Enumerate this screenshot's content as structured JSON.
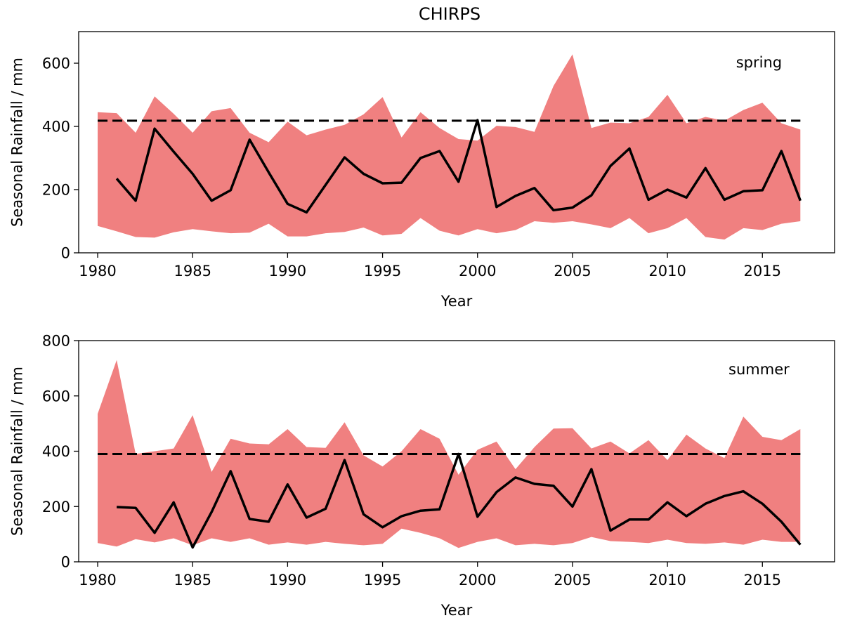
{
  "figure": {
    "title": "CHIRPS"
  },
  "chart_data": [
    {
      "type": "area",
      "annotation": "spring",
      "xlabel": "Year",
      "ylabel": "Seasonal Rainfall / mm",
      "xlim": [
        1979.0,
        2018.8
      ],
      "ylim": [
        0,
        700
      ],
      "xticks": [
        1980,
        1985,
        1990,
        1995,
        2000,
        2005,
        2010,
        2015
      ],
      "yticks": [
        0,
        200,
        400,
        600
      ],
      "grid": false,
      "colors": {
        "band": "#f08080",
        "line": "#000000",
        "threshold": "#000000"
      },
      "band": {
        "x": [
          1980,
          1981,
          1982,
          1983,
          1984,
          1985,
          1986,
          1987,
          1988,
          1989,
          1990,
          1991,
          1992,
          1993,
          1994,
          1995,
          1996,
          1997,
          1998,
          1999,
          2000,
          2001,
          2002,
          2003,
          2004,
          2005,
          2006,
          2007,
          2008,
          2009,
          2010,
          2011,
          2012,
          2013,
          2014,
          2015,
          2016,
          2017
        ],
        "upper": [
          445,
          442,
          380,
          495,
          440,
          380,
          448,
          458,
          380,
          350,
          415,
          372,
          390,
          405,
          438,
          493,
          365,
          445,
          395,
          360,
          355,
          402,
          398,
          383,
          528,
          628,
          395,
          412,
          410,
          430,
          500,
          410,
          430,
          418,
          452,
          475,
          410,
          390
        ],
        "lower": [
          85,
          68,
          50,
          48,
          65,
          75,
          68,
          62,
          64,
          92,
          52,
          52,
          62,
          66,
          80,
          55,
          60,
          110,
          70,
          55,
          75,
          62,
          72,
          100,
          95,
          100,
          90,
          78,
          110,
          62,
          78,
          110,
          50,
          42,
          78,
          72,
          92,
          100
        ]
      },
      "series": [
        {
          "x": [
            1981,
            1982,
            1983,
            1984,
            1985,
            1986,
            1987,
            1988,
            1989,
            1990,
            1991,
            1992,
            1993,
            1994,
            1995,
            1996,
            1997,
            1998,
            1999,
            2000,
            2001,
            2002,
            2003,
            2004,
            2005,
            2006,
            2007,
            2008,
            2009,
            2010,
            2011,
            2012,
            2013,
            2014,
            2015,
            2016,
            2017
          ],
          "values": [
            235,
            165,
            393,
            320,
            250,
            165,
            198,
            358,
            255,
            155,
            128,
            215,
            302,
            250,
            220,
            222,
            300,
            322,
            225,
            420,
            145,
            180,
            205,
            135,
            143,
            182,
            275,
            330,
            168,
            200,
            175,
            268,
            168,
            195,
            198,
            322,
            165
          ]
        }
      ],
      "threshold": 418
    },
    {
      "type": "area",
      "annotation": "summer",
      "xlabel": "Year",
      "ylabel": "Seasonal Rainfall / mm",
      "xlim": [
        1979.0,
        2018.8
      ],
      "ylim": [
        0,
        800
      ],
      "xticks": [
        1980,
        1985,
        1990,
        1995,
        2000,
        2005,
        2010,
        2015
      ],
      "yticks": [
        0,
        200,
        400,
        600,
        800
      ],
      "grid": false,
      "colors": {
        "band": "#f08080",
        "line": "#000000",
        "threshold": "#000000"
      },
      "band": {
        "x": [
          1980,
          1981,
          1982,
          1983,
          1984,
          1985,
          1986,
          1987,
          1988,
          1989,
          1990,
          1991,
          1992,
          1993,
          1994,
          1995,
          1996,
          1997,
          1998,
          1999,
          2000,
          2001,
          2002,
          2003,
          2004,
          2005,
          2006,
          2007,
          2008,
          2009,
          2010,
          2011,
          2012,
          2013,
          2014,
          2015,
          2016,
          2017
        ],
        "upper": [
          535,
          730,
          390,
          400,
          410,
          530,
          325,
          445,
          428,
          425,
          480,
          415,
          412,
          505,
          385,
          345,
          400,
          480,
          445,
          315,
          405,
          435,
          335,
          415,
          482,
          483,
          410,
          435,
          392,
          440,
          368,
          460,
          410,
          375,
          525,
          452,
          440,
          480
        ],
        "lower": [
          68,
          55,
          82,
          70,
          85,
          60,
          85,
          72,
          85,
          62,
          70,
          62,
          72,
          65,
          60,
          65,
          120,
          105,
          85,
          50,
          72,
          85,
          60,
          65,
          60,
          68,
          90,
          75,
          72,
          68,
          80,
          68,
          65,
          70,
          62,
          80,
          72,
          72
        ]
      },
      "series": [
        {
          "x": [
            1981,
            1982,
            1983,
            1984,
            1985,
            1986,
            1987,
            1988,
            1989,
            1990,
            1991,
            1992,
            1993,
            1994,
            1995,
            1996,
            1997,
            1998,
            1999,
            2000,
            2001,
            2002,
            2003,
            2004,
            2005,
            2006,
            2007,
            2008,
            2009,
            2010,
            2011,
            2012,
            2013,
            2014,
            2015,
            2016,
            2017
          ],
          "values": [
            198,
            195,
            105,
            215,
            52,
            180,
            328,
            155,
            145,
            280,
            160,
            192,
            368,
            172,
            125,
            165,
            185,
            190,
            390,
            163,
            252,
            305,
            282,
            275,
            200,
            335,
            113,
            153,
            153,
            215,
            165,
            210,
            238,
            255,
            210,
            145,
            62
          ]
        }
      ],
      "threshold": 390
    }
  ]
}
